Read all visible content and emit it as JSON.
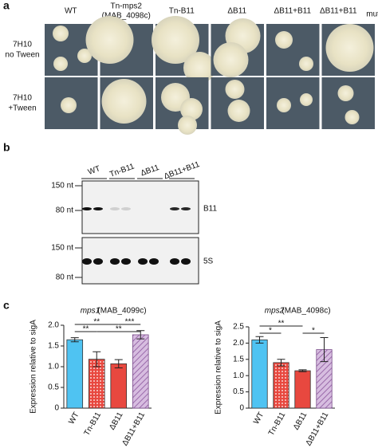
{
  "panel_a": {
    "letter": "a",
    "columns": [
      {
        "label": "WT"
      },
      {
        "label": "Tn-mps2",
        "sublabel": "(MAB_4098c)"
      },
      {
        "label": "Tn-B11"
      },
      {
        "label": "ΔB11"
      },
      {
        "label": "ΔB11+B11"
      },
      {
        "label": "ΔB11+B11",
        "subscript": "mutated"
      }
    ],
    "rows": [
      [
        "7H10",
        "no Tween"
      ],
      [
        "7H10",
        "+Tween"
      ]
    ]
  },
  "panel_b": {
    "letter": "b",
    "lanes": [
      "WT",
      "Tn-B11",
      "ΔB11",
      "ΔB11+B11"
    ],
    "blots": [
      {
        "label": "B11",
        "markers": [
          "150 nt",
          "80 nt"
        ]
      },
      {
        "label": "5S",
        "markers": [
          "150 nt",
          "80 nt"
        ]
      }
    ]
  },
  "panel_c": {
    "letter": "c"
  },
  "chart_data": [
    {
      "type": "bar",
      "title": "mps1",
      "subtitle": "(MAB_4099c)",
      "y_label": "Expression relative to sigA",
      "categories": [
        "WT",
        "Tn-B11",
        "ΔB11",
        "ΔB11+B11"
      ],
      "values": [
        1.65,
        1.18,
        1.07,
        1.77
      ],
      "errors": [
        0.05,
        0.18,
        0.1,
        0.1
      ],
      "colors": [
        "#4fc3f2",
        "#e8483f",
        "#e8483f",
        "#b98bc9"
      ],
      "patterns": [
        "solid",
        "dots",
        "solid",
        "hatch"
      ],
      "ylim": [
        0,
        2.0
      ],
      "yticks": [
        0,
        0.5,
        {
          "value": 1,
          "label": "1.0"
        },
        1.5,
        {
          "value": 2,
          "label": "2.0"
        }
      ],
      "annotations": [
        "**",
        "***",
        "**",
        "**"
      ]
    },
    {
      "type": "bar",
      "title": "mps2",
      "subtitle": "(MAB_4098c)",
      "y_label": "Expression relative to sigA",
      "categories": [
        "WT",
        "Tn-B11",
        "ΔB11",
        "ΔB11+B11"
      ],
      "values": [
        2.1,
        1.4,
        1.15,
        1.8
      ],
      "errors": [
        0.1,
        0.1,
        0.03,
        0.37
      ],
      "colors": [
        "#4fc3f2",
        "#e8483f",
        "#e8483f",
        "#b98bc9"
      ],
      "patterns": [
        "solid",
        "dots",
        "solid",
        "hatch"
      ],
      "ylim": [
        0,
        2.5
      ],
      "yticks": [
        0,
        0.5,
        {
          "value": 1,
          "label": "1.0"
        },
        1.5,
        {
          "value": 2,
          "label": "2.0"
        },
        2.5
      ],
      "annotations": [
        "*",
        "**",
        "*"
      ]
    }
  ]
}
